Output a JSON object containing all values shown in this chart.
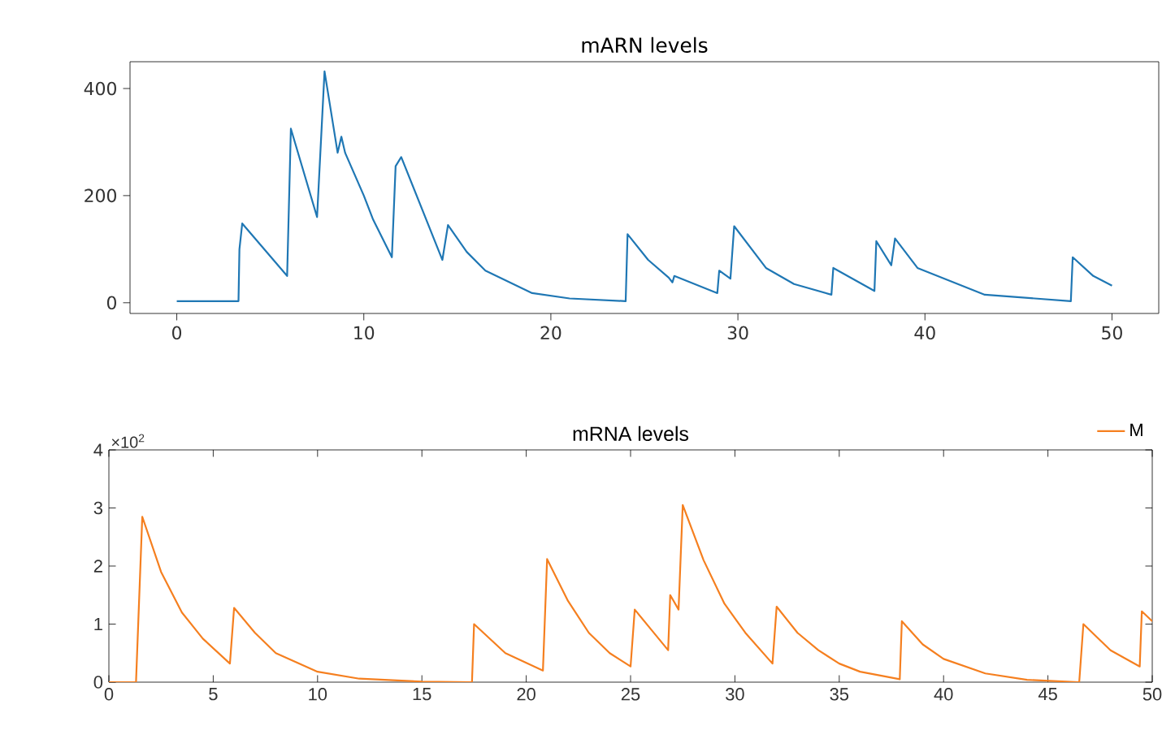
{
  "chart_data": [
    {
      "type": "line",
      "title": "mARN levels",
      "x": [
        0,
        3.3,
        3.35,
        3.5,
        5.9,
        6.1,
        7.5,
        7.9,
        8.6,
        8.8,
        9,
        10,
        10.5,
        11.5,
        11.7,
        12,
        14.2,
        14.5,
        15.5,
        16.5,
        19,
        21,
        24,
        24.1,
        25.2,
        26.3,
        26.5,
        26.6,
        28.9,
        29,
        29.6,
        29.8,
        31.5,
        33,
        35,
        35.1,
        37.3,
        37.4,
        38.2,
        38.4,
        39.6,
        43.2,
        47.8,
        47.9,
        49,
        50
      ],
      "series": [
        {
          "color": "#1f77b4",
          "values": [
            3,
            3,
            100,
            148,
            50,
            325,
            160,
            432,
            280,
            310,
            280,
            200,
            155,
            85,
            255,
            272,
            80,
            145,
            95,
            60,
            18,
            8,
            3,
            128,
            80,
            47,
            38,
            50,
            18,
            60,
            45,
            143,
            65,
            35,
            15,
            65,
            22,
            115,
            70,
            120,
            65,
            15,
            3,
            85,
            50,
            32
          ]
        }
      ],
      "xlim": [
        -2.5,
        52.5
      ],
      "ylim": [
        -20,
        450
      ],
      "xticks": [
        0,
        10,
        20,
        30,
        40,
        50
      ],
      "yticks": [
        0,
        200,
        400
      ]
    },
    {
      "type": "line",
      "title": "mRNA levels",
      "x": [
        0,
        1.3,
        1.6,
        2.5,
        3.5,
        4.5,
        5.8,
        6.0,
        7,
        8,
        10,
        12,
        15,
        17.4,
        17.5,
        19,
        20.8,
        21,
        22,
        23,
        24,
        25,
        25.2,
        26,
        26.8,
        26.9,
        27.3,
        27.5,
        28.5,
        29.5,
        30.5,
        31.8,
        32,
        33,
        34,
        35,
        36,
        37.9,
        38,
        39,
        40,
        42,
        44,
        46.5,
        46.7,
        48,
        49.4,
        49.5,
        50
      ],
      "series": [
        {
          "name": "M",
          "color": "#f57f1f",
          "values": [
            0,
            0,
            2.85,
            1.9,
            1.2,
            0.75,
            0.32,
            1.28,
            0.85,
            0.5,
            0.18,
            0.06,
            0.01,
            0,
            1.0,
            0.5,
            0.2,
            2.12,
            1.4,
            0.85,
            0.5,
            0.27,
            1.25,
            0.9,
            0.55,
            1.5,
            1.25,
            3.05,
            2.1,
            1.35,
            0.85,
            0.32,
            1.3,
            0.85,
            0.55,
            0.32,
            0.18,
            0.05,
            1.05,
            0.65,
            0.4,
            0.15,
            0.04,
            0,
            1.0,
            0.55,
            0.27,
            1.22,
            1.05
          ]
        }
      ],
      "xlim": [
        0,
        50
      ],
      "ylim": [
        0,
        4
      ],
      "xticks": [
        0,
        5,
        10,
        15,
        20,
        25,
        30,
        35,
        40,
        45,
        50
      ],
      "yticks": [
        0,
        1,
        2,
        3,
        4
      ],
      "legend": "top right",
      "annotations": [
        "×10$^{2}$"
      ]
    }
  ]
}
